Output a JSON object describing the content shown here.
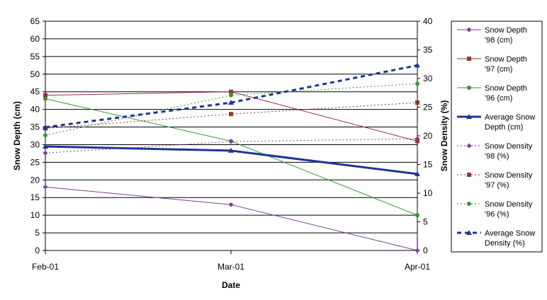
{
  "chart_data": {
    "type": "line",
    "xlabel": "Date",
    "ylabel": "Snow Depth (cm)",
    "y2label": "Snow Density (%)",
    "categories": [
      "Feb-01",
      "Mar-01",
      "Apr-01"
    ],
    "ylim": [
      0,
      65
    ],
    "yticks": [
      0,
      5,
      10,
      15,
      20,
      25,
      30,
      35,
      40,
      45,
      50,
      55,
      60,
      65
    ],
    "y2lim": [
      0,
      40
    ],
    "y2ticks": [
      0,
      5,
      10,
      15,
      20,
      25,
      30,
      35,
      40
    ],
    "grid": true,
    "legend_position": "right",
    "series": [
      {
        "name": "Snow Depth '98 (cm)",
        "legend_lines": [
          "Snow Depth",
          "'98 (cm)"
        ],
        "axis": "left",
        "values": [
          18,
          13,
          0
        ],
        "color": "#7f3f98",
        "marker": "diamond",
        "dash": "solid",
        "width": 1
      },
      {
        "name": "Snow Depth '97 (cm)",
        "legend_lines": [
          "Snow Depth",
          "'97 (cm)"
        ],
        "axis": "left",
        "values": [
          44,
          45,
          31
        ],
        "color": "#993333",
        "marker": "square",
        "dash": "solid",
        "width": 1
      },
      {
        "name": "Snow Depth '96 (cm)",
        "legend_lines": [
          "Snow Depth",
          "'96 (cm)"
        ],
        "axis": "left",
        "values": [
          43,
          31,
          10
        ],
        "color": "#339933",
        "marker": "circle",
        "dash": "solid",
        "width": 1
      },
      {
        "name": "Average Snow Depth (cm)",
        "legend_lines": [
          "Average Snow",
          "Depth (cm)"
        ],
        "axis": "left",
        "values": [
          29.5,
          28.3,
          21.7
        ],
        "color": "#1f3494",
        "marker": "triangle",
        "dash": "solid",
        "width": 3
      },
      {
        "name": "Snow Density '98 (%)",
        "legend_lines": [
          "Snow Density",
          "'98 (%)"
        ],
        "axis": "right",
        "values": [
          17,
          19,
          19.5
        ],
        "color": "#7f3f98",
        "marker": "diamond",
        "dash": "dot",
        "width": 1
      },
      {
        "name": "Snow Density '97 (%)",
        "legend_lines": [
          "Snow Density",
          "'97 (%)"
        ],
        "axis": "right",
        "values": [
          21.3,
          23.8,
          25.8
        ],
        "color": "#993333",
        "marker": "square",
        "dash": "dot",
        "width": 1
      },
      {
        "name": "Snow Density '96 (%)",
        "legend_lines": [
          "Snow Density",
          "'96 (%)"
        ],
        "axis": "right",
        "values": [
          20.1,
          27.1,
          29.1
        ],
        "color": "#339933",
        "marker": "circle",
        "dash": "dot",
        "width": 1
      },
      {
        "name": "Average Snow Density (%)",
        "legend_lines": [
          "Average Snow",
          "Density (%)"
        ],
        "axis": "right",
        "values": [
          21.5,
          25.8,
          32.3
        ],
        "color": "#1f3494",
        "marker": "triangle",
        "dash": "dash",
        "width": 3
      }
    ]
  }
}
